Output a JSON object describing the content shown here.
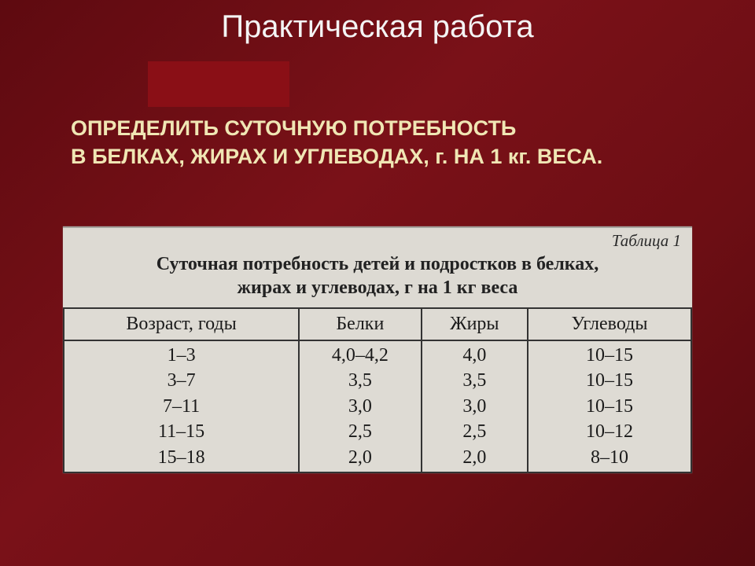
{
  "title": "Практическая работа",
  "subtitle": "ОПРЕДЕЛИТЬ  СУТОЧНУЮ ПОТРЕБНОСТЬ\nВ БЕЛКАХ, ЖИРАХ И УГЛЕВОДАХ, г.  НА  1 кг.  ВЕСА.",
  "table": {
    "label": "Таблица 1",
    "caption": "Суточная потребность детей и подростков в белках,\nжирах и углеводах, г на 1 кг веса",
    "columns": [
      "Возраст, годы",
      "Белки",
      "Жиры",
      "Углеводы"
    ],
    "rows": [
      [
        "1–3",
        "4,0–4,2",
        "4,0",
        "10–15"
      ],
      [
        "3–7",
        "3,5",
        "3,5",
        "10–15"
      ],
      [
        "7–11",
        "3,0",
        "3,0",
        "10–15"
      ],
      [
        "11–15",
        "2,5",
        "2,5",
        "10–12"
      ],
      [
        "15–18",
        "2,0",
        "2,0",
        "8–10"
      ]
    ],
    "header_fontsize": 24,
    "cell_fontsize": 24,
    "border_color": "#333333",
    "background_color": "#dedbd4"
  },
  "colors": {
    "slide_bg_from": "#5e0a10",
    "slide_bg_to": "#7a1118",
    "accent_box": "#8a0f16",
    "title_color": "#f4f4f4",
    "subtitle_color": "#f0e6b4"
  }
}
